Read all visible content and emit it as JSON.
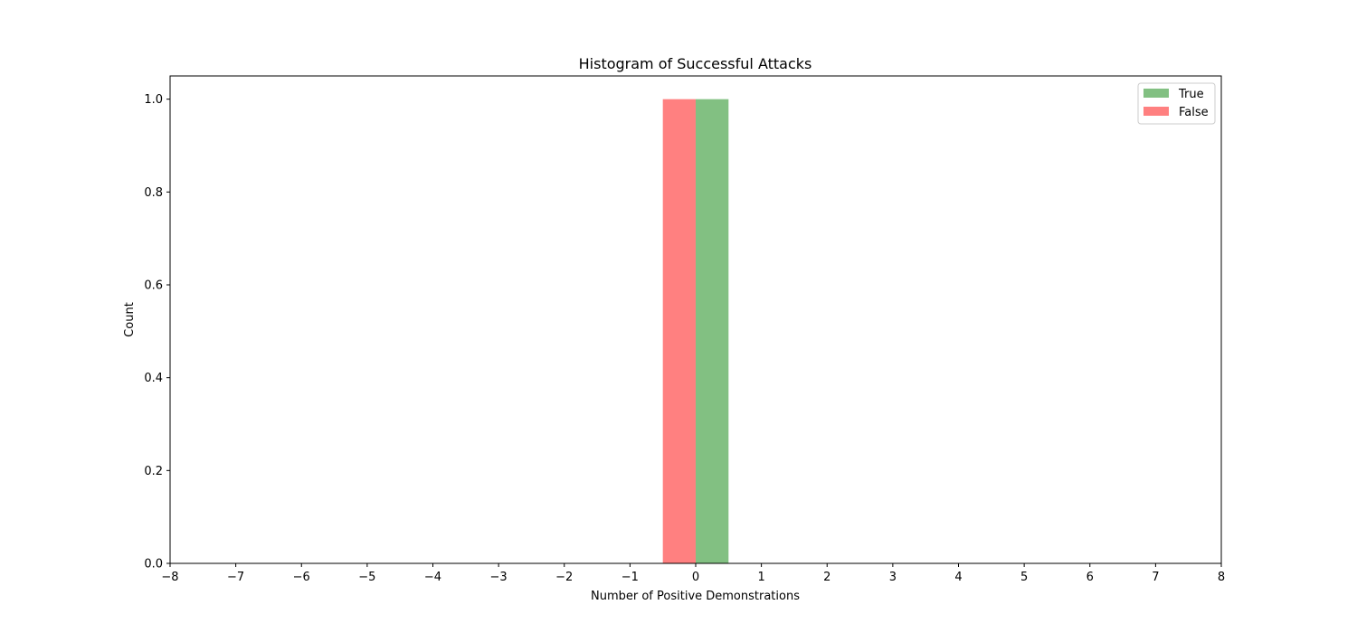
{
  "chart_data": {
    "type": "bar",
    "title": "Histogram of Successful Attacks",
    "xlabel": "Number of Positive Demonstrations",
    "ylabel": "Count",
    "xlim": [
      -8,
      8
    ],
    "ylim": [
      0,
      1.05
    ],
    "xticks": [
      -8,
      -7,
      -6,
      -5,
      -4,
      -3,
      -2,
      -1,
      0,
      1,
      2,
      3,
      4,
      5,
      6,
      7,
      8
    ],
    "yticks": [
      0.0,
      0.2,
      0.4,
      0.6,
      0.8,
      1.0
    ],
    "grid": false,
    "legend_position": "top-right",
    "series": [
      {
        "name": "True",
        "color": "#82c082",
        "bars": [
          {
            "x_start": 0.0,
            "x_end": 0.5,
            "value": 1.0
          }
        ]
      },
      {
        "name": "False",
        "color": "#ff8080",
        "bars": [
          {
            "x_start": -0.5,
            "x_end": 0.0,
            "value": 1.0
          }
        ]
      }
    ]
  }
}
